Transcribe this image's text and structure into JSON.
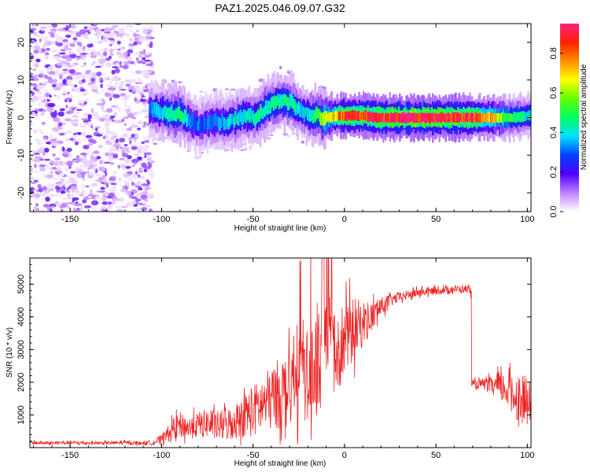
{
  "title": "PAZ1.2025.046.09.07.G32",
  "colors": {
    "snr_line": "#ee2222",
    "background": "#ffffff",
    "axis": "#000000"
  },
  "chart_data": [
    {
      "type": "heatmap",
      "title": "PAZ1.2025.046.09.07.G32",
      "xlabel": "Height of straight line (km)",
      "ylabel": "Frequency (Hz)",
      "xlim": [
        -172,
        102
      ],
      "ylim": [
        -25,
        25
      ],
      "x_ticks": [
        -150,
        -100,
        -50,
        0,
        50,
        100
      ],
      "y_ticks": [
        -20,
        -10,
        0,
        10,
        20
      ],
      "colorbar": {
        "label": "Normalized spectral amplitude",
        "range": [
          0,
          0.95
        ],
        "ticks": [
          0.0,
          0.2,
          0.4,
          0.6,
          0.8
        ],
        "colormap": "rainbow"
      },
      "noise_region": {
        "x_range": [
          -172,
          -105
        ],
        "freq_range": [
          -25,
          25
        ],
        "amplitude": "low (0.0-0.15)"
      },
      "ridge": {
        "x": [
          -107,
          -100,
          -95,
          -90,
          -85,
          -80,
          -75,
          -70,
          -65,
          -60,
          -55,
          -50,
          -45,
          -40,
          -35,
          -30,
          -25,
          -20,
          -15,
          -10,
          -5,
          0,
          10,
          20,
          30,
          40,
          50,
          60,
          70,
          80,
          90,
          100
        ],
        "freq": [
          2.0,
          1.5,
          1.0,
          1.0,
          -1.0,
          -2.0,
          -1.5,
          -1.0,
          -1.5,
          -0.5,
          0.5,
          0.0,
          1.5,
          3.5,
          4.5,
          4.0,
          2.0,
          0.5,
          0.5,
          0.0,
          0.5,
          0.5,
          0.5,
          0.0,
          0.0,
          0.0,
          0.0,
          0.0,
          0.0,
          0.0,
          0.0,
          0.5
        ],
        "amplitude": [
          0.3,
          0.4,
          0.45,
          0.5,
          0.35,
          0.3,
          0.3,
          0.35,
          0.35,
          0.4,
          0.4,
          0.4,
          0.45,
          0.45,
          0.45,
          0.45,
          0.4,
          0.4,
          0.5,
          0.6,
          0.75,
          0.85,
          0.85,
          0.9,
          0.95,
          0.95,
          0.9,
          0.9,
          0.85,
          0.7,
          0.5,
          0.4
        ]
      }
    },
    {
      "type": "line",
      "xlabel": "Height of straight line (km)",
      "ylabel": "SNR (10 * v/v)",
      "xlim": [
        -172,
        102
      ],
      "ylim": [
        0,
        5800
      ],
      "x_ticks": [
        -150,
        -100,
        -50,
        0,
        50,
        100
      ],
      "y_ticks": [
        1000,
        2000,
        3000,
        4000,
        5000
      ],
      "series": [
        {
          "x": [
            -172,
            -160,
            -150,
            -140,
            -130,
            -120,
            -110,
            -105,
            -100,
            -95,
            -90,
            -85,
            -80,
            -75,
            -70,
            -65,
            -60,
            -55,
            -50,
            -45,
            -40,
            -35,
            -30,
            -25,
            -20,
            -15,
            -12,
            -10,
            -5,
            0,
            5,
            10,
            15,
            20,
            25,
            30,
            40,
            50,
            60,
            65,
            69,
            70,
            75,
            80,
            85,
            90,
            95,
            100,
            102
          ],
          "values": [
            150,
            140,
            150,
            140,
            140,
            150,
            140,
            150,
            250,
            500,
            700,
            600,
            700,
            750,
            650,
            700,
            800,
            1000,
            1100,
            1300,
            1500,
            1700,
            1800,
            2000,
            2200,
            2400,
            3000,
            3600,
            3000,
            3300,
            3600,
            3800,
            4000,
            4300,
            4500,
            4600,
            4750,
            4800,
            4850,
            4850,
            4850,
            1900,
            1950,
            1900,
            1850,
            1750,
            1500,
            1400,
            1200
          ],
          "spread": [
            60,
            50,
            60,
            50,
            50,
            60,
            50,
            80,
            150,
            300,
            400,
            350,
            400,
            450,
            450,
            500,
            550,
            700,
            800,
            900,
            1000,
            1100,
            1200,
            1300,
            1400,
            1500,
            1600,
            1600,
            1400,
            1200,
            1000,
            700,
            500,
            300,
            200,
            150,
            150,
            120,
            120,
            120,
            120,
            150,
            150,
            250,
            450,
            550,
            700,
            800,
            800
          ]
        }
      ]
    }
  ]
}
